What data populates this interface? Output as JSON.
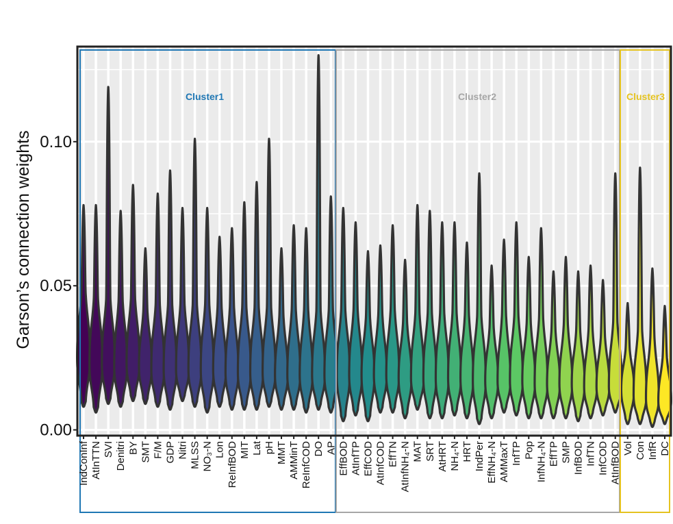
{
  "chart_data": {
    "type": "violin",
    "title": "",
    "xlabel": "",
    "ylabel": "Garson’s connection weights",
    "ylim": [
      -0.002,
      0.133
    ],
    "yticks": [
      0.0,
      0.05,
      0.1
    ],
    "ytick_labels": [
      "0.00",
      "0.05",
      "0.10"
    ],
    "grid": true,
    "legend": "none",
    "colors": {
      "viridis_start": "#440154",
      "viridis_mid": "#21908C",
      "viridis_end": "#FDE725",
      "outline": "#333333"
    },
    "clusters": [
      {
        "name": "Cluster1",
        "color": "#1F77B4",
        "first": 0,
        "last": 32
      },
      {
        "name": "Cluster2",
        "color": "#A6A6A6",
        "first": 33,
        "last": 65
      },
      {
        "name": "Cluster3",
        "color": "#E5C320",
        "first": 66,
        "last": 69
      }
    ],
    "categories": [
      "IndConInf",
      "AtInTTN",
      "SVI",
      "Denitri",
      "BY",
      "SMT",
      "F/M",
      "GDP",
      "Nitri",
      "MLSS",
      "NO₃-N",
      "Lon",
      "ReInfBOD",
      "MIT",
      "Lat",
      "pH",
      "MMT",
      "AMMinT",
      "ReInfCOD",
      "DO",
      "AP",
      "EffBOD",
      "AtInfTP",
      "EffCOD",
      "AtInfCOD",
      "EffTN",
      "AtInfNH₄-N",
      "MAT",
      "SRT",
      "AtHRT",
      "NH₄-N",
      "HRT",
      "IndPer",
      "EffNH₄-N",
      "AMMaxT",
      "InfTP",
      "Pop",
      "InfNH₄-N",
      "EffTP",
      "SMP",
      "InfBOD",
      "InfTN",
      "InfCOD",
      "AtInfBOD",
      "Vol",
      "Con",
      "InfR",
      "DC"
    ],
    "max_values": [
      0.078,
      0.078,
      0.119,
      0.076,
      0.085,
      0.063,
      0.082,
      0.09,
      0.077,
      0.101,
      0.077,
      0.067,
      0.07,
      0.079,
      0.086,
      0.101,
      0.063,
      0.071,
      0.07,
      0.13,
      0.081,
      0.077,
      0.072,
      0.062,
      0.064,
      0.071,
      0.059,
      0.078,
      0.076,
      0.072,
      0.072,
      0.065,
      0.089,
      0.057,
      0.066,
      0.072,
      0.06,
      0.07,
      0.055,
      0.06,
      0.055,
      0.057,
      0.052,
      0.089,
      0.044,
      0.091,
      0.056,
      0.043
    ],
    "medians": [
      0.025,
      0.023,
      0.023,
      0.022,
      0.023,
      0.022,
      0.021,
      0.021,
      0.021,
      0.021,
      0.021,
      0.021,
      0.02,
      0.02,
      0.02,
      0.02,
      0.019,
      0.019,
      0.019,
      0.019,
      0.019,
      0.019,
      0.019,
      0.019,
      0.019,
      0.019,
      0.018,
      0.018,
      0.018,
      0.018,
      0.018,
      0.018,
      0.017,
      0.017,
      0.017,
      0.017,
      0.017,
      0.016,
      0.016,
      0.016,
      0.016,
      0.015,
      0.015,
      0.015,
      0.014,
      0.012,
      0.011,
      0.01
    ],
    "min_values": [
      0.008,
      0.006,
      0.009,
      0.008,
      0.01,
      0.009,
      0.008,
      0.007,
      0.01,
      0.008,
      0.006,
      0.008,
      0.007,
      0.007,
      0.007,
      0.008,
      0.007,
      0.007,
      0.006,
      0.007,
      0.006,
      0.003,
      0.005,
      0.003,
      0.006,
      0.006,
      0.004,
      0.007,
      0.004,
      0.004,
      0.005,
      0.004,
      0.002,
      0.004,
      0.006,
      0.005,
      0.004,
      0.004,
      0.004,
      0.004,
      0.003,
      0.004,
      0.005,
      0.006,
      0.002,
      0.002,
      0.001,
      0.002
    ]
  }
}
